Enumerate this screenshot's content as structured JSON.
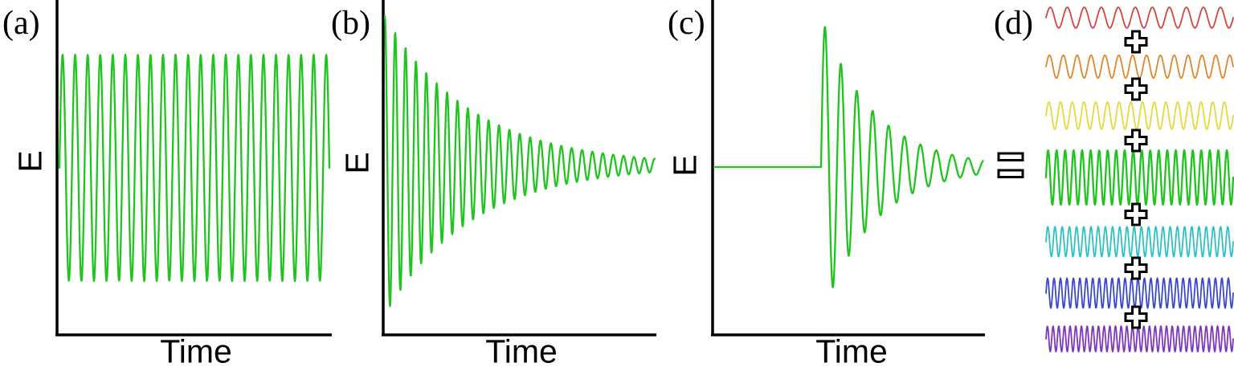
{
  "panels": [
    {
      "id": "a",
      "label": "(a)",
      "ylabel": "E",
      "xlabel": "Time"
    },
    {
      "id": "b",
      "label": "(b)",
      "ylabel": "E",
      "xlabel": "Time"
    },
    {
      "id": "c",
      "label": "(c)",
      "ylabel": "E",
      "xlabel": "Time"
    },
    {
      "id": "d",
      "label": "(d)"
    }
  ],
  "operators": {
    "plus_symbol": "+",
    "plus_count": 6,
    "equals_symbol": "=",
    "style": "hollow black outline, white fill"
  },
  "colors": {
    "axis": "#000000",
    "main_wave_green": "#1fc41f",
    "mode_red": "#d8433f",
    "mode_orange": "#e2862c",
    "mode_yellow": "#e6d93c",
    "mode_green": "#1fc41f",
    "mode_cyan": "#2dc0c4",
    "mode_blue": "#3a49c6",
    "mode_purple": "#8136b8",
    "background": "#ffffff"
  },
  "chart_data": [
    {
      "panel": "a",
      "type": "line",
      "xlabel": "Time",
      "ylabel": "E",
      "axes": {
        "frame": "L-shape",
        "x_ticks": [],
        "y_ticks": [],
        "grid": false
      },
      "series": [
        {
          "name": "continuous-monochromatic-wave",
          "color": "#1fc41f",
          "waveform": "sine",
          "cycles": 21.5,
          "phase_deg": 0,
          "envelope": {
            "type": "constant",
            "amplitude": 1.0
          }
        }
      ]
    },
    {
      "panel": "b",
      "type": "line",
      "xlabel": "Time",
      "ylabel": "E",
      "axes": {
        "frame": "L-shape",
        "x_ticks": [],
        "y_ticks": [],
        "grid": false
      },
      "series": [
        {
          "name": "exponentially-decaying-wave",
          "color": "#1fc41f",
          "waveform": "sine",
          "cycles": 26,
          "phase_deg": 90,
          "envelope": {
            "type": "exponential-decay",
            "initial_amplitude": 1.0,
            "final_amplitude": 0.045
          }
        }
      ]
    },
    {
      "panel": "c",
      "type": "line",
      "xlabel": "Time",
      "ylabel": "E",
      "axes": {
        "frame": "L-shape",
        "x_ticks": [],
        "y_ticks": [],
        "grid": false
      },
      "series": [
        {
          "name": "delayed-onset-decaying-wave",
          "color": "#1fc41f",
          "waveform": "sine",
          "onset_fraction": 0.4,
          "pre_onset_value": 0.0,
          "cycles_after_onset": 10.2,
          "phase_deg": 0,
          "envelope": {
            "type": "exponential-decay",
            "initial_amplitude": 1.0,
            "final_amplitude": 0.045
          }
        }
      ]
    },
    {
      "panel": "d",
      "type": "line",
      "description": "stack of frequency modes summed (hollow plus signs between rows, hollow equals sign at left) giving the green wave",
      "operator_between_series": "+",
      "series": [
        {
          "name": "mode-red",
          "color": "#d8433f",
          "waveform": "sine",
          "cycles": 11,
          "relative_amplitude": 0.38
        },
        {
          "name": "mode-orange",
          "color": "#e2862c",
          "waveform": "sine",
          "cycles": 13.5,
          "relative_amplitude": 0.42
        },
        {
          "name": "mode-yellow",
          "color": "#e6d93c",
          "waveform": "sine",
          "cycles": 16,
          "relative_amplitude": 0.5
        },
        {
          "name": "mode-green-sum",
          "color": "#1fc41f",
          "waveform": "sine",
          "cycles": 22,
          "relative_amplitude": 1.0
        },
        {
          "name": "mode-cyan",
          "color": "#2dc0c4",
          "waveform": "sine",
          "cycles": 26,
          "relative_amplitude": 0.55
        },
        {
          "name": "mode-blue",
          "color": "#3a49c6",
          "waveform": "sine",
          "cycles": 29,
          "relative_amplitude": 0.55
        },
        {
          "name": "mode-purple",
          "color": "#8136b8",
          "waveform": "sine",
          "cycles": 33,
          "relative_amplitude": 0.47
        }
      ]
    }
  ]
}
